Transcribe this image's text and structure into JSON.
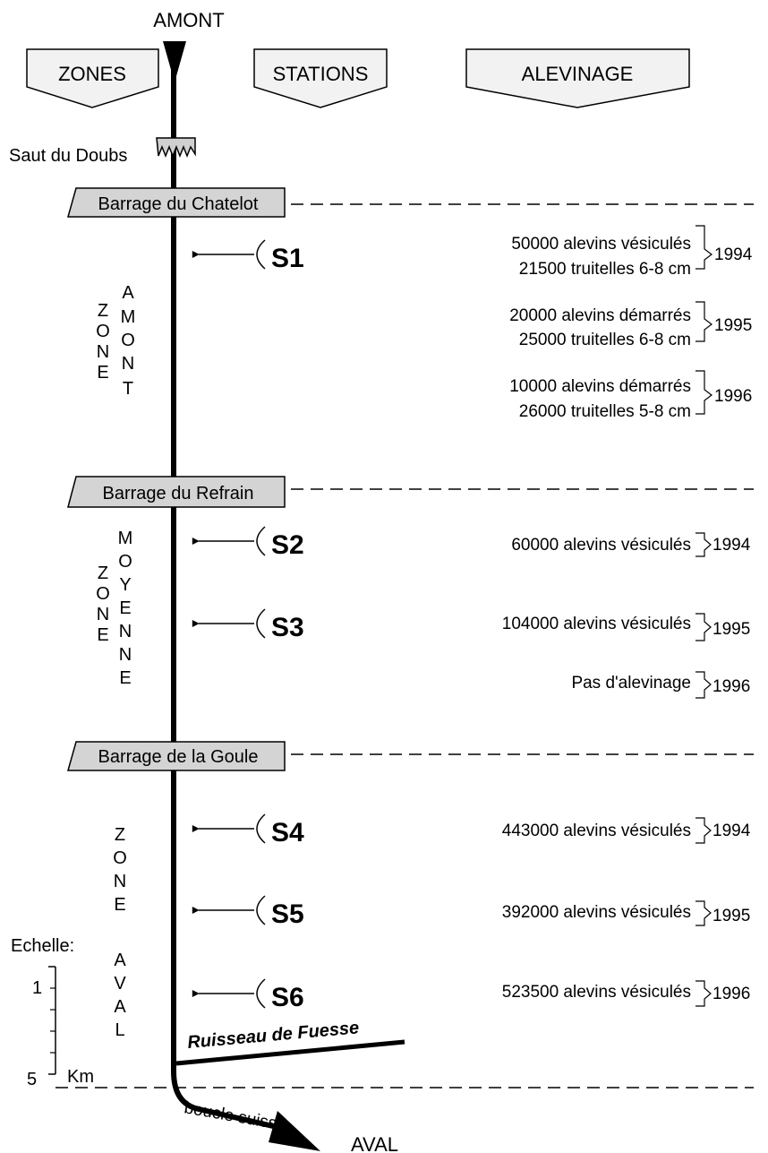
{
  "labels": {
    "upstream": "AMONT",
    "downstream": "AVAL",
    "header_zones": "ZONES",
    "header_stations": "STATIONS",
    "header_stocking": "ALEVINAGE",
    "waterfall": "Saut du Doubs",
    "tributary": "Ruisseau de Fuesse",
    "swiss_loop": "boucle suisse"
  },
  "dams": [
    "Barrage du Chatelot",
    "Barrage du Refrain",
    "Barrage de la Goule"
  ],
  "zones": [
    {
      "col1": [
        "Z",
        "O",
        "N",
        "E"
      ],
      "col2": [
        "A",
        "M",
        "O",
        "N",
        "T"
      ]
    },
    {
      "col1": [
        "Z",
        "O",
        "N",
        "E"
      ],
      "col2": [
        "M",
        "O",
        "Y",
        "E",
        "N",
        "N",
        "E"
      ]
    },
    {
      "col1": [
        "Z",
        "O",
        "N",
        "E"
      ],
      "col2": [
        "A",
        "V",
        "A",
        "L"
      ]
    }
  ],
  "stations": [
    "S1",
    "S2",
    "S3",
    "S4",
    "S5",
    "S6"
  ],
  "stocking_blocks": [
    {
      "lines": [
        "50000 alevins vésiculés",
        "21500 truitelles 6-8 cm"
      ],
      "year": "1994"
    },
    {
      "lines": [
        "20000 alevins démarrés",
        "25000 truitelles 6-8 cm"
      ],
      "year": "1995"
    },
    {
      "lines": [
        "10000 alevins démarrés",
        "26000 truitelles 5-8 cm"
      ],
      "year": "1996"
    },
    {
      "lines": [
        "60000 alevins vésiculés"
      ],
      "year": "1994"
    },
    {
      "lines": [
        "104000 alevins vésiculés"
      ],
      "year": "1995"
    },
    {
      "lines": [
        "Pas d'alevinage"
      ],
      "year": "1996"
    },
    {
      "lines": [
        "443000 alevins vésiculés"
      ],
      "year": "1994"
    },
    {
      "lines": [
        "392000 alevins vésiculés"
      ],
      "year": "1995"
    },
    {
      "lines": [
        "523500 alevins vésiculés"
      ],
      "year": "1996"
    }
  ],
  "scale": {
    "title": "Echelle:",
    "label_top": "1",
    "label_bottom": "5",
    "unit": "Km"
  }
}
